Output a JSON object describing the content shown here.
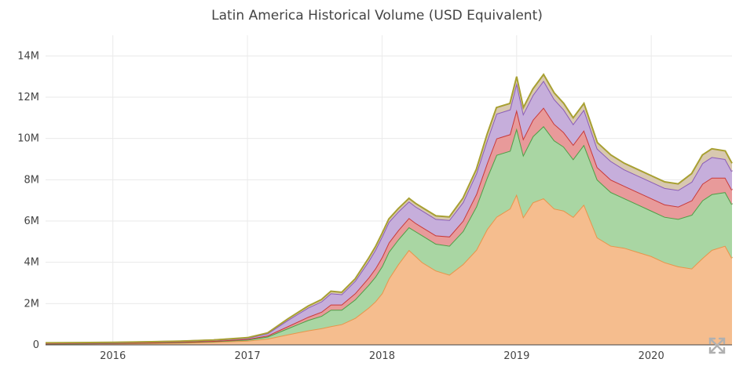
{
  "chart_data": {
    "type": "area",
    "stacked": true,
    "title": "Latin America Historical Volume (USD Equivalent)",
    "xlabel": "",
    "ylabel": "",
    "x_ticks": [
      "2016",
      "2017",
      "2018",
      "2019",
      "2020"
    ],
    "x_tick_values": [
      2016,
      2017,
      2018,
      2019,
      2020
    ],
    "y_ticks": [
      "0",
      "2M",
      "4M",
      "6M",
      "8M",
      "10M",
      "12M",
      "14M"
    ],
    "y_tick_values": [
      0,
      2,
      4,
      6,
      8,
      10,
      12,
      14
    ],
    "ylim": [
      0,
      15
    ],
    "xlim": [
      2015.5,
      2020.6
    ],
    "grid": true,
    "legend": "none",
    "x": [
      2015.5,
      2015.75,
      2016.0,
      2016.25,
      2016.5,
      2016.75,
      2017.0,
      2017.15,
      2017.3,
      2017.45,
      2017.55,
      2017.62,
      2017.7,
      2017.8,
      2017.9,
      2017.95,
      2018.0,
      2018.05,
      2018.12,
      2018.2,
      2018.25,
      2018.3,
      2018.4,
      2018.5,
      2018.6,
      2018.7,
      2018.78,
      2018.85,
      2018.95,
      2019.0,
      2019.05,
      2019.12,
      2019.2,
      2019.28,
      2019.35,
      2019.42,
      2019.5,
      2019.6,
      2019.7,
      2019.8,
      2019.9,
      2020.0,
      2020.1,
      2020.2,
      2020.3,
      2020.38,
      2020.45,
      2020.55,
      2020.6
    ],
    "series": [
      {
        "color": "#f5bd8e",
        "line": "#e8944a",
        "values": [
          0.05,
          0.06,
          0.07,
          0.08,
          0.1,
          0.14,
          0.2,
          0.3,
          0.5,
          0.7,
          0.8,
          0.9,
          1.0,
          1.3,
          1.8,
          2.1,
          2.5,
          3.2,
          3.9,
          4.6,
          4.3,
          4.0,
          3.6,
          3.4,
          3.9,
          4.6,
          5.6,
          6.2,
          6.6,
          7.3,
          6.2,
          6.9,
          7.1,
          6.6,
          6.5,
          6.2,
          6.8,
          5.2,
          4.8,
          4.7,
          4.5,
          4.3,
          4.0,
          3.8,
          3.7,
          4.2,
          4.6,
          4.8,
          4.2
        ]
      },
      {
        "color": "#a9d6a3",
        "line": "#4e9e46",
        "values": [
          0.01,
          0.01,
          0.01,
          0.02,
          0.02,
          0.03,
          0.05,
          0.1,
          0.3,
          0.5,
          0.6,
          0.8,
          0.7,
          0.9,
          1.1,
          1.2,
          1.3,
          1.3,
          1.2,
          1.1,
          1.2,
          1.3,
          1.3,
          1.4,
          1.6,
          2.1,
          2.5,
          3.0,
          2.8,
          3.2,
          3.0,
          3.2,
          3.5,
          3.3,
          3.1,
          2.8,
          2.9,
          2.8,
          2.6,
          2.4,
          2.3,
          2.2,
          2.2,
          2.3,
          2.6,
          2.8,
          2.7,
          2.6,
          2.6
        ]
      },
      {
        "color": "#e89a9a",
        "line": "#c83a3a",
        "values": [
          0.01,
          0.01,
          0.01,
          0.01,
          0.02,
          0.02,
          0.03,
          0.05,
          0.1,
          0.15,
          0.2,
          0.25,
          0.25,
          0.3,
          0.35,
          0.4,
          0.45,
          0.45,
          0.45,
          0.45,
          0.4,
          0.4,
          0.4,
          0.45,
          0.5,
          0.6,
          0.7,
          0.8,
          0.8,
          0.9,
          0.8,
          0.8,
          0.9,
          0.8,
          0.7,
          0.7,
          0.7,
          0.6,
          0.6,
          0.6,
          0.6,
          0.6,
          0.6,
          0.6,
          0.7,
          0.8,
          0.8,
          0.7,
          0.7
        ]
      },
      {
        "color": "#c6aedb",
        "line": "#8a5cb8",
        "values": [
          0.02,
          0.02,
          0.02,
          0.03,
          0.03,
          0.04,
          0.05,
          0.1,
          0.3,
          0.45,
          0.5,
          0.55,
          0.5,
          0.6,
          0.8,
          0.9,
          1.0,
          1.0,
          0.9,
          0.8,
          0.8,
          0.8,
          0.8,
          0.8,
          0.9,
          1.0,
          1.1,
          1.2,
          1.2,
          1.3,
          1.2,
          1.2,
          1.3,
          1.2,
          1.1,
          1.0,
          1.0,
          0.9,
          0.9,
          0.8,
          0.8,
          0.8,
          0.8,
          0.8,
          0.9,
          1.0,
          1.0,
          0.9,
          0.9
        ]
      },
      {
        "color": "#d8c8b0",
        "line": "#a8a032",
        "values": [
          0.01,
          0.01,
          0.01,
          0.01,
          0.01,
          0.01,
          0.02,
          0.03,
          0.06,
          0.08,
          0.1,
          0.1,
          0.1,
          0.1,
          0.15,
          0.15,
          0.15,
          0.15,
          0.15,
          0.15,
          0.15,
          0.15,
          0.15,
          0.15,
          0.2,
          0.2,
          0.3,
          0.3,
          0.3,
          0.3,
          0.3,
          0.3,
          0.3,
          0.3,
          0.3,
          0.3,
          0.3,
          0.3,
          0.3,
          0.3,
          0.3,
          0.3,
          0.3,
          0.3,
          0.4,
          0.4,
          0.4,
          0.4,
          0.4
        ]
      }
    ]
  },
  "controls": {
    "expand_icon": "expand-arrows-icon"
  }
}
